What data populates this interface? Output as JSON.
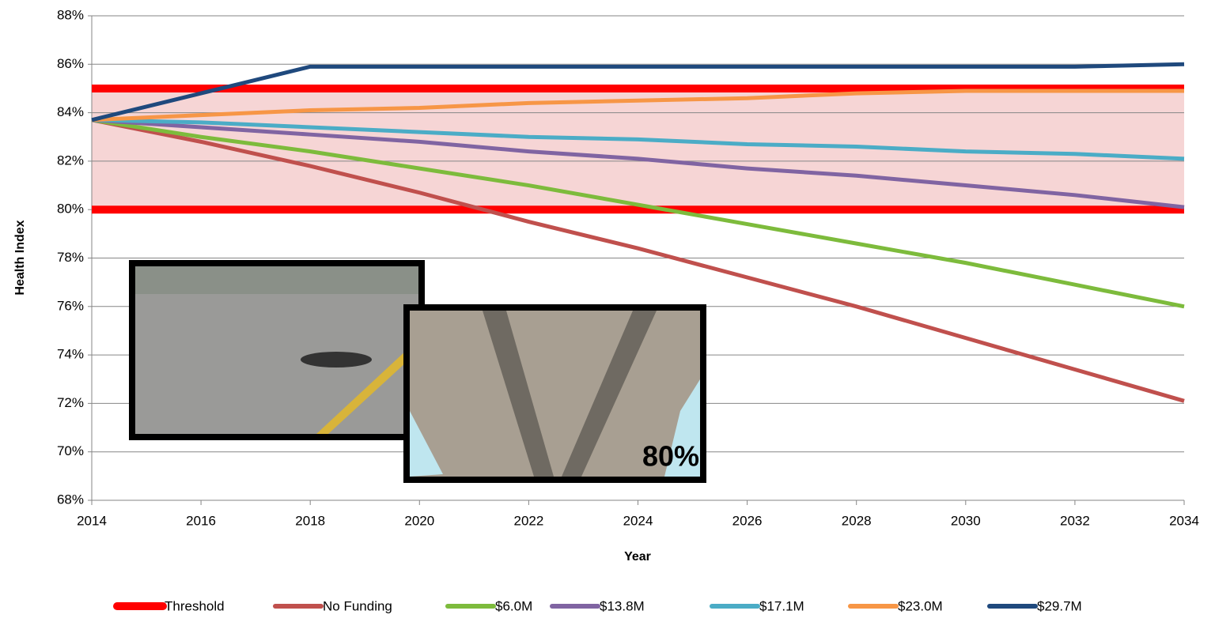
{
  "chart_data": {
    "type": "line",
    "xlabel": "Year",
    "ylabel": "Health Index",
    "x": [
      2014,
      2016,
      2018,
      2020,
      2022,
      2024,
      2026,
      2028,
      2030,
      2032,
      2034
    ],
    "xlim": [
      2014,
      2034
    ],
    "xticks": [
      2014,
      2016,
      2018,
      2020,
      2022,
      2024,
      2026,
      2028,
      2030,
      2032,
      2034
    ],
    "ylim": [
      68,
      88
    ],
    "yticks": [
      {
        "value": 68,
        "label": "68%"
      },
      {
        "value": 70,
        "label": "70%"
      },
      {
        "value": 72,
        "label": "72%"
      },
      {
        "value": 74,
        "label": "74%"
      },
      {
        "value": 76,
        "label": "76%"
      },
      {
        "value": 78,
        "label": "78%"
      },
      {
        "value": 80,
        "label": "80%"
      },
      {
        "value": 82,
        "label": "82%"
      },
      {
        "value": 84,
        "label": "84%"
      },
      {
        "value": 86,
        "label": "86%"
      },
      {
        "value": 88,
        "label": "88%"
      }
    ],
    "grid": true,
    "threshold": {
      "name": "Threshold",
      "color": "#ff0000",
      "fill": "#f6d5d5",
      "lower": 80,
      "upper": 85
    },
    "series": [
      {
        "name": "No Funding",
        "color": "#c0504d",
        "values": [
          83.7,
          82.8,
          81.8,
          80.7,
          79.5,
          78.4,
          77.2,
          76.0,
          74.7,
          73.4,
          72.1
        ]
      },
      {
        "name": "$6.0M",
        "color": "#7dbb3c",
        "values": [
          83.7,
          83.0,
          82.4,
          81.7,
          81.0,
          80.2,
          79.4,
          78.6,
          77.8,
          76.9,
          76.0
        ]
      },
      {
        "name": "$13.8M",
        "color": "#8064a2",
        "values": [
          83.7,
          83.4,
          83.1,
          82.8,
          82.4,
          82.1,
          81.7,
          81.4,
          81.0,
          80.6,
          80.1
        ]
      },
      {
        "name": "$17.1M",
        "color": "#4bacc6",
        "values": [
          83.7,
          83.6,
          83.4,
          83.2,
          83.0,
          82.9,
          82.7,
          82.6,
          82.4,
          82.3,
          82.1
        ]
      },
      {
        "name": "$23.0M",
        "color": "#f79646",
        "values": [
          83.7,
          83.9,
          84.1,
          84.2,
          84.4,
          84.5,
          84.6,
          84.8,
          84.9,
          84.9,
          84.9
        ]
      },
      {
        "name": "$29.7M",
        "color": "#1f497d",
        "values": [
          83.7,
          84.8,
          85.9,
          85.9,
          85.9,
          85.9,
          85.9,
          85.9,
          85.9,
          85.9,
          86.0
        ]
      }
    ],
    "photo_label": "80%"
  }
}
